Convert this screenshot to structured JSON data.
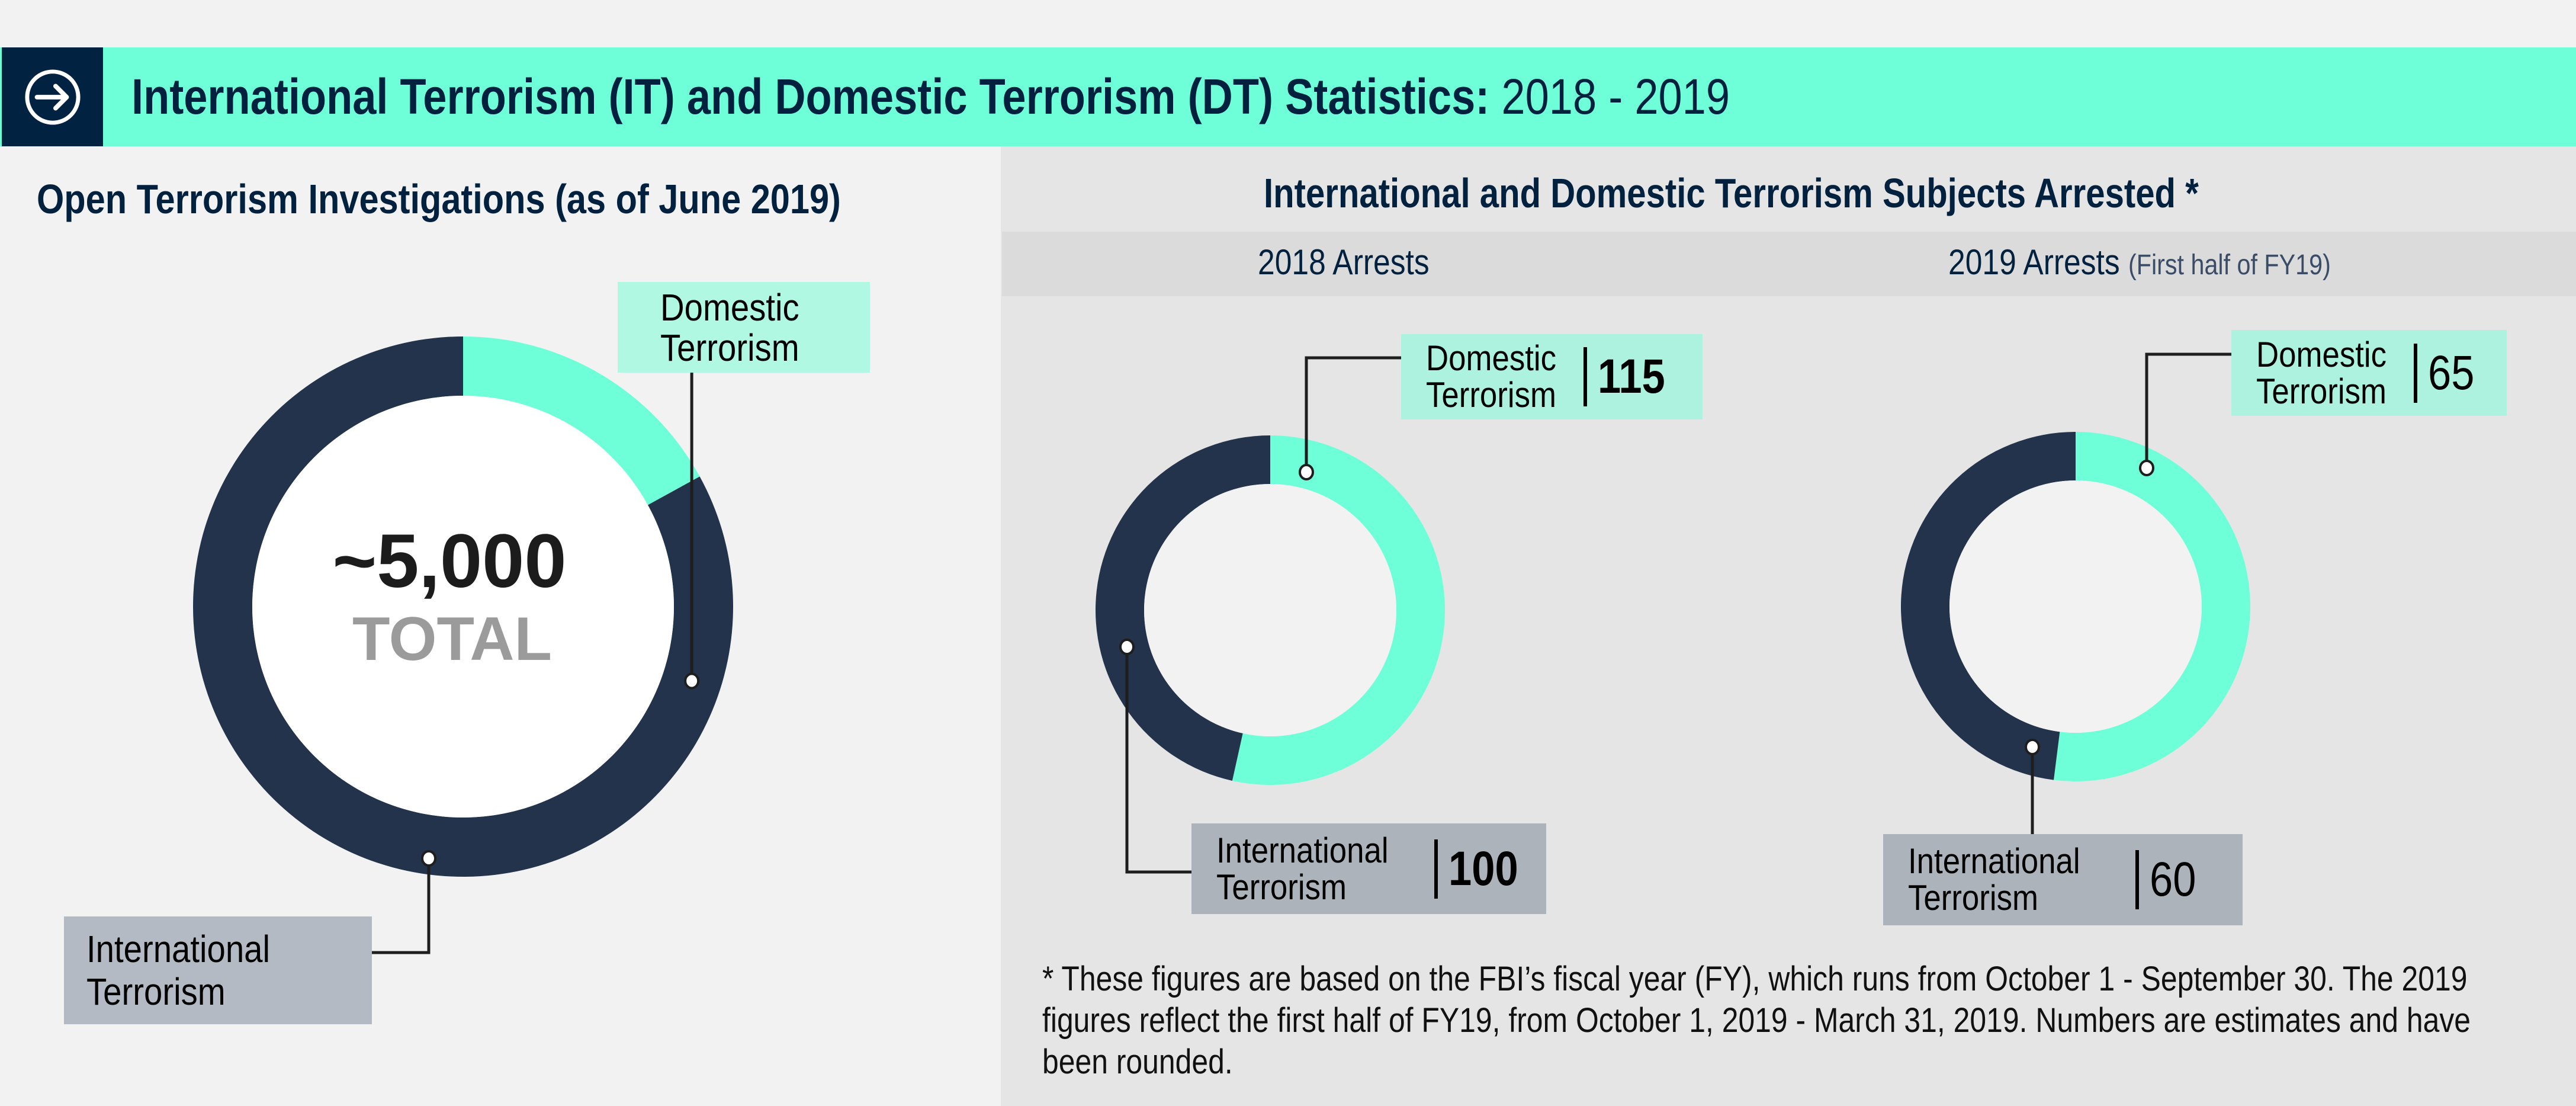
{
  "banner": {
    "icon": "arrow-circle-right-icon",
    "title_bold": "International Terrorism (IT) and Domestic Terrorism (DT)  Statistics:",
    "title_regular": "2018 - 2019"
  },
  "left_section": {
    "title": "Open Terrorism Investigations (as of June 2019)",
    "center_value": "~5,000",
    "center_label": "TOTAL",
    "labels": {
      "domestic": [
        "Domestic",
        "Terrorism"
      ],
      "international": [
        "International",
        "Terrorism"
      ]
    }
  },
  "right_section": {
    "title": "International and Domestic Terrorism Subjects Arrested *",
    "sub_2018": "2018 Arrests",
    "sub_2019": "2019 Arrests",
    "sub_2019_note": "(First half of FY19)",
    "footnote": "* These figures are based on the FBI’s fiscal year (FY), which runs from October 1 - September 30. The 2019 figures  reflect the first half of FY19, from October 1, 2019 - March 31, 2019. Numbers are estimates and have been rounded."
  },
  "colors": {
    "banner": "#6fffd8",
    "navy": "#022242",
    "domestic": "#6fffd8",
    "international": "#22334b",
    "domestic_label_bg": "#adf2df",
    "international_label_bg": "#adb3ba"
  },
  "chart_data": [
    {
      "type": "pie",
      "title": "Open Terrorism Investigations (as of June 2019)",
      "total_label": "~5,000 TOTAL",
      "categories": [
        "Domestic Terrorism",
        "International Terrorism"
      ],
      "values": [
        17,
        83
      ],
      "value_units": "approximate percent of ring (estimated from arc)",
      "donut": true
    },
    {
      "type": "pie",
      "title": "2018 Arrests",
      "categories": [
        "Domestic Terrorism",
        "International Terrorism"
      ],
      "values": [
        115,
        100
      ],
      "value_labels": [
        "115",
        "100"
      ],
      "donut": true
    },
    {
      "type": "pie",
      "title": "2019 Arrests (First half of FY19)",
      "categories": [
        "Domestic Terrorism",
        "International Terrorism"
      ],
      "values": [
        65,
        60
      ],
      "value_labels": [
        "65",
        "60"
      ],
      "donut": true
    }
  ]
}
